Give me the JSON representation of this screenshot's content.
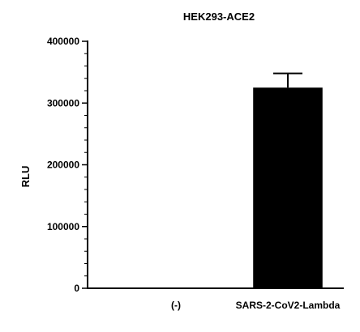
{
  "chart_data": {
    "type": "bar",
    "title": "HEK293-ACE2",
    "xlabel": "",
    "ylabel": "RLU",
    "categories": [
      "(-)",
      "SARS-2-CoV2-Lambda"
    ],
    "values": [
      0,
      325000
    ],
    "error": [
      0,
      23000
    ],
    "ylim": [
      0,
      400000
    ],
    "yticks": [
      0,
      100000,
      200000,
      300000,
      400000
    ],
    "ytick_labels": [
      "0",
      "100000",
      "200000",
      "300000",
      "400000"
    ],
    "minor_ticks_per_major": 4,
    "bar_color": "#000000",
    "grid": false,
    "legend": "none"
  }
}
